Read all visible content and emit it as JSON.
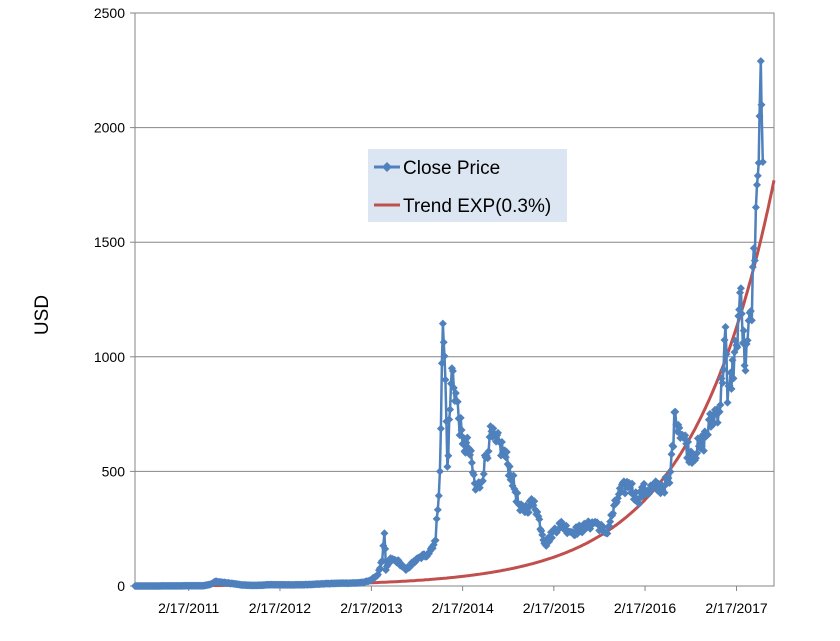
{
  "chart_data": {
    "type": "line",
    "title": "",
    "xlabel": "",
    "ylabel": "USD",
    "x_tick_labels": [
      "2/17/2011",
      "2/17/2012",
      "2/17/2013",
      "2/17/2014",
      "2/17/2015",
      "2/17/2016",
      "2/17/2017"
    ],
    "y_tick_labels": [
      "0",
      "500",
      "1000",
      "1500",
      "2000",
      "2500"
    ],
    "ylim": [
      0,
      2500
    ],
    "xlim": [
      "2010-07-17",
      "2017-07-17"
    ],
    "grid": "horizontal",
    "legend_position": "upper-middle",
    "series": [
      {
        "name": "Close Price",
        "color": "#4F81BD",
        "marker": "diamond",
        "points": [
          [
            "2010-07-17",
            0.05
          ],
          [
            "2010-09-15",
            0.06
          ],
          [
            "2010-11-15",
            0.3
          ],
          [
            "2011-01-15",
            0.5
          ],
          [
            "2011-02-17",
            1
          ],
          [
            "2011-04-15",
            1
          ],
          [
            "2011-05-15",
            7
          ],
          [
            "2011-06-05",
            20
          ],
          [
            "2011-06-15",
            18
          ],
          [
            "2011-07-15",
            14
          ],
          [
            "2011-08-15",
            10
          ],
          [
            "2011-09-15",
            5
          ],
          [
            "2011-10-15",
            3
          ],
          [
            "2011-11-15",
            2.5
          ],
          [
            "2011-12-15",
            4
          ],
          [
            "2012-01-15",
            6
          ],
          [
            "2012-02-17",
            5
          ],
          [
            "2012-04-15",
            5
          ],
          [
            "2012-06-15",
            6.5
          ],
          [
            "2012-08-15",
            10
          ],
          [
            "2012-10-15",
            12
          ],
          [
            "2012-12-15",
            13
          ],
          [
            "2013-01-15",
            15
          ],
          [
            "2013-02-17",
            27
          ],
          [
            "2013-03-15",
            50
          ],
          [
            "2013-04-01",
            110
          ],
          [
            "2013-04-10",
            230
          ],
          [
            "2013-04-16",
            70
          ],
          [
            "2013-05-01",
            115
          ],
          [
            "2013-06-01",
            110
          ],
          [
            "2013-07-05",
            70
          ],
          [
            "2013-08-01",
            100
          ],
          [
            "2013-09-01",
            125
          ],
          [
            "2013-10-01",
            140
          ],
          [
            "2013-11-01",
            200
          ],
          [
            "2013-11-18",
            500
          ],
          [
            "2013-11-30",
            1145
          ],
          [
            "2013-12-10",
            900
          ],
          [
            "2013-12-18",
            520
          ],
          [
            "2014-01-05",
            950
          ],
          [
            "2014-02-17",
            620
          ],
          [
            "2014-03-15",
            600
          ],
          [
            "2014-04-10",
            420
          ],
          [
            "2014-05-01",
            450
          ],
          [
            "2014-06-05",
            650
          ],
          [
            "2014-07-01",
            630
          ],
          [
            "2014-08-01",
            590
          ],
          [
            "2014-09-01",
            480
          ],
          [
            "2014-10-05",
            330
          ],
          [
            "2014-11-01",
            340
          ],
          [
            "2014-12-01",
            370
          ],
          [
            "2015-01-14",
            180
          ],
          [
            "2015-02-17",
            240
          ],
          [
            "2015-03-15",
            270
          ],
          [
            "2015-05-01",
            235
          ],
          [
            "2015-07-01",
            260
          ],
          [
            "2015-08-01",
            280
          ],
          [
            "2015-09-15",
            230
          ],
          [
            "2015-11-04",
            400
          ],
          [
            "2015-12-15",
            450
          ],
          [
            "2016-01-15",
            380
          ],
          [
            "2016-02-17",
            420
          ],
          [
            "2016-04-15",
            430
          ],
          [
            "2016-05-25",
            450
          ],
          [
            "2016-06-17",
            760
          ],
          [
            "2016-07-15",
            660
          ],
          [
            "2016-08-15",
            575
          ],
          [
            "2016-10-01",
            610
          ],
          [
            "2016-11-15",
            740
          ],
          [
            "2016-12-15",
            790
          ],
          [
            "2017-01-04",
            1130
          ],
          [
            "2017-01-12",
            800
          ],
          [
            "2017-02-17",
            1050
          ],
          [
            "2017-03-03",
            1280
          ],
          [
            "2017-03-25",
            940
          ],
          [
            "2017-04-15",
            1200
          ],
          [
            "2017-05-01",
            1420
          ],
          [
            "2017-05-10",
            1750
          ],
          [
            "2017-05-20",
            2050
          ],
          [
            "2017-05-25",
            2290
          ],
          [
            "2017-05-28",
            2100
          ],
          [
            "2017-06-02",
            1850
          ]
        ]
      },
      {
        "name": "Trend EXP(0.3%)",
        "color": "#C0504D",
        "marker": "none",
        "trend": {
          "rate_per_day": 0.003,
          "end_date": "2017-07-17",
          "end_value": 1770
        }
      }
    ]
  }
}
